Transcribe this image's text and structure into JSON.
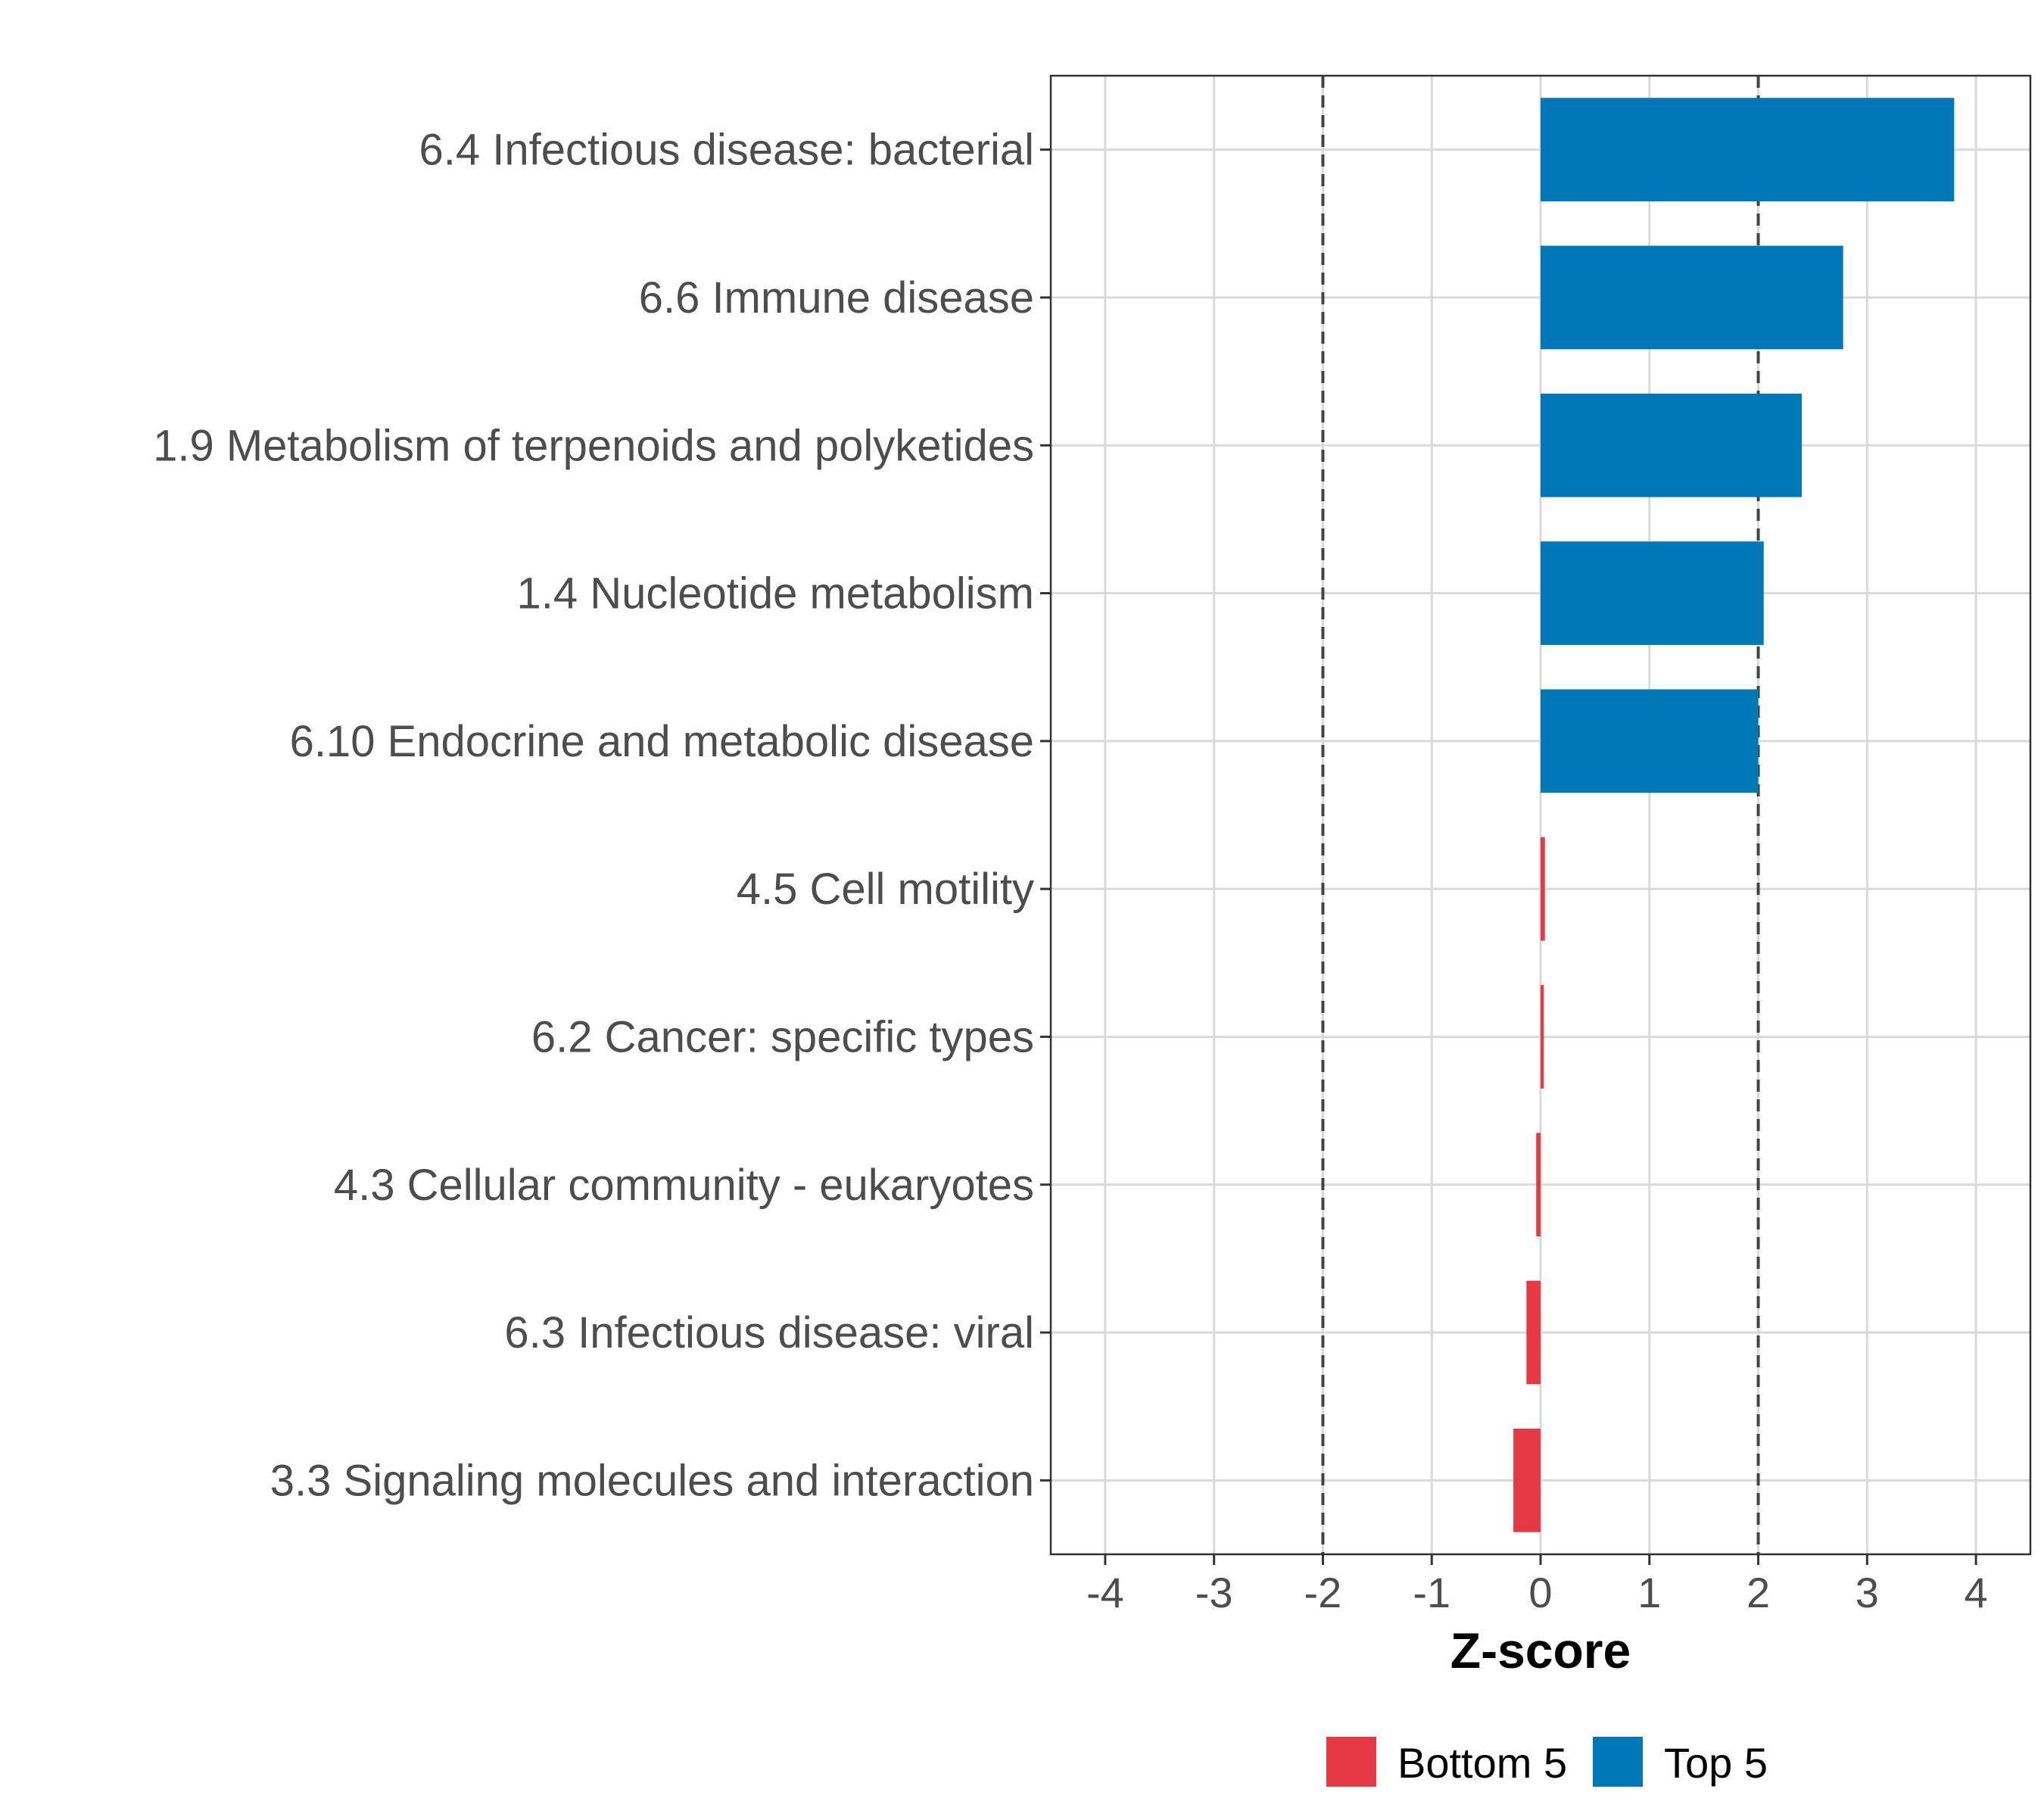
{
  "chart_data": {
    "type": "bar",
    "orientation": "horizontal",
    "categories": [
      "6.4 Infectious disease: bacterial",
      "6.6 Immune disease",
      "1.9 Metabolism of terpenoids and polyketides",
      "1.4 Nucleotide metabolism",
      "6.10 Endocrine and metabolic disease",
      "4.5 Cell motility",
      "6.2 Cancer: specific types",
      "4.3 Cellular community - eukaryotes",
      "6.3 Infectious disease: viral",
      "3.3 Signaling molecules and interaction"
    ],
    "values": [
      3.8,
      2.78,
      2.4,
      2.05,
      2.0,
      0.04,
      0.03,
      -0.04,
      -0.13,
      -0.25
    ],
    "groups": [
      "Top 5",
      "Top 5",
      "Top 5",
      "Top 5",
      "Top 5",
      "Bottom 5",
      "Bottom 5",
      "Bottom 5",
      "Bottom 5",
      "Bottom 5"
    ],
    "xlabel": "Z-score",
    "ylabel": "",
    "xlim": [
      -4.5,
      4.5
    ],
    "xticks": [
      -4,
      -3,
      -2,
      -1,
      0,
      1,
      2,
      3,
      4
    ],
    "xtick_labels": [
      "-4",
      "-3",
      "-2",
      "-1",
      "0",
      "1",
      "2",
      "3",
      "4"
    ],
    "reference_lines": [
      -2,
      2
    ],
    "grid": true,
    "legend": {
      "placement": "bottom",
      "items": [
        {
          "label": "Bottom 5",
          "color": "#e63946"
        },
        {
          "label": "Top 5",
          "color": "#0077b6"
        }
      ]
    },
    "colors": {
      "Bottom 5": "#e63946",
      "Top 5": "#0077b6"
    }
  }
}
